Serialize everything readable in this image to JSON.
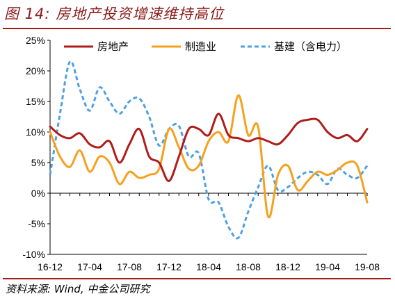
{
  "title": "图 14: 房地产投资增速维持高位",
  "source": "资料来源: Wind, 中金公司研究",
  "chart_data": {
    "type": "line",
    "x": [
      "16-12",
      "17-01",
      "17-02",
      "17-03",
      "17-04",
      "17-05",
      "17-06",
      "17-07",
      "17-08",
      "17-09",
      "17-10",
      "17-11",
      "17-12",
      "18-01",
      "18-02",
      "18-03",
      "18-04",
      "18-05",
      "18-06",
      "18-07",
      "18-08",
      "18-09",
      "18-10",
      "18-11",
      "18-12",
      "19-01",
      "19-02",
      "19-03",
      "19-04",
      "19-05",
      "19-06",
      "19-07",
      "19-08"
    ],
    "xticks": [
      "16-12",
      "17-04",
      "17-08",
      "17-12",
      "18-04",
      "18-08",
      "18-12",
      "19-04",
      "19-08"
    ],
    "ylim": [
      -10,
      25
    ],
    "yticks": [
      -10,
      -5,
      0,
      5,
      10,
      15,
      20,
      25
    ],
    "ytick_labels": [
      "-10%",
      "-5%",
      "0%",
      "5%",
      "10%",
      "15%",
      "20%",
      "25%"
    ],
    "grid": false,
    "legend_position": "top",
    "series": [
      {
        "name": "房地产",
        "color": "#b01c1c",
        "dash": "",
        "values": [
          10.9,
          9.5,
          9.0,
          9.8,
          8.0,
          7.5,
          8.5,
          5.0,
          8.0,
          10.5,
          6.0,
          5.0,
          2.0,
          6.0,
          10.5,
          10.5,
          9.5,
          13.0,
          9.5,
          9.0,
          8.5,
          9.0,
          8.5,
          8.0,
          9.5,
          11.5,
          12.0,
          12.0,
          10.0,
          9.0,
          9.5,
          8.5,
          10.5
        ]
      },
      {
        "name": "制造业",
        "color": "#f5a01e",
        "dash": "",
        "values": [
          10.0,
          6.0,
          4.3,
          7.0,
          3.5,
          6.0,
          5.0,
          1.5,
          3.5,
          2.5,
          3.0,
          4.0,
          10.5,
          7.5,
          4.0,
          4.5,
          8.5,
          10.0,
          8.5,
          16.0,
          9.5,
          10.8,
          -3.8,
          3.0,
          4.5,
          0.5,
          2.0,
          3.5,
          3.0,
          3.8,
          5.0,
          4.5,
          -1.5
        ]
      },
      {
        "name": "基建（含电力）",
        "color": "#4fa0e3",
        "dash": "6,4",
        "values": [
          3.0,
          13.0,
          21.5,
          17.0,
          13.5,
          17.3,
          15.0,
          13.0,
          15.0,
          15.5,
          12.5,
          7.8,
          10.5,
          11.0,
          6.0,
          6.5,
          -1.0,
          -1.5,
          -5.5,
          -7.3,
          -3.0,
          1.0,
          4.5,
          0.5,
          1.0,
          2.5,
          3.5,
          3.0,
          1.5,
          4.0,
          3.0,
          2.5,
          4.5
        ]
      }
    ]
  }
}
